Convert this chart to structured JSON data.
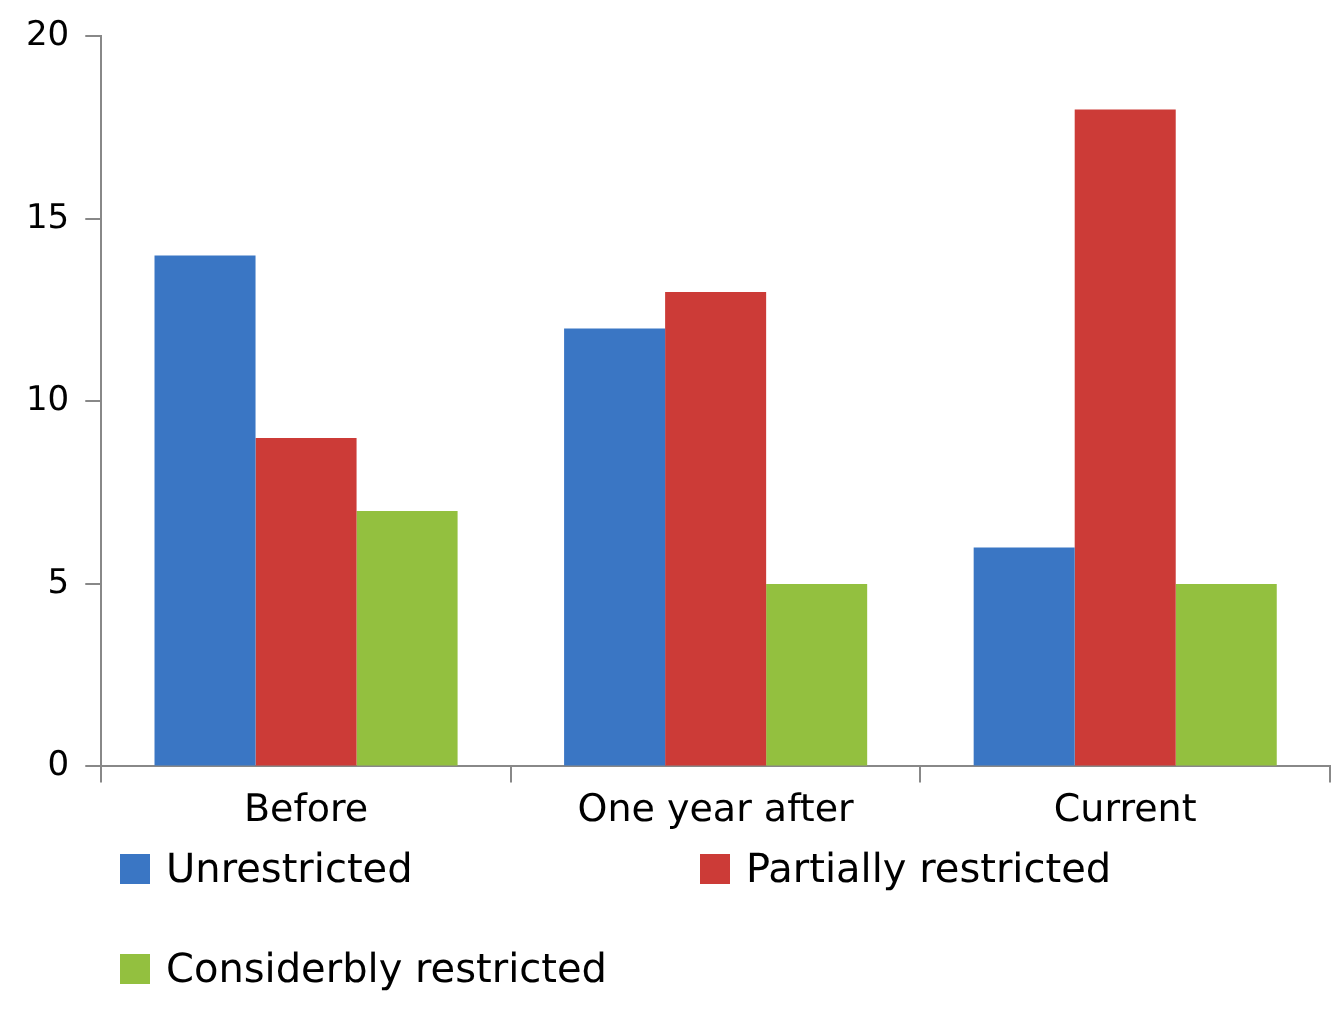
{
  "chart_data": {
    "type": "bar",
    "categories": [
      "Before",
      "One year after",
      "Current"
    ],
    "series": [
      {
        "name": "Unrestricted",
        "color": "#3a76c4",
        "values": [
          14,
          12,
          6
        ]
      },
      {
        "name": "Partially restricted",
        "color": "#cc3b37",
        "values": [
          9,
          13,
          18
        ]
      },
      {
        "name": "Considerbly restricted",
        "color": "#93c03f",
        "values": [
          7,
          5,
          5
        ]
      }
    ],
    "ylim": [
      0,
      20
    ],
    "yticks": [
      0,
      5,
      10,
      15,
      20
    ],
    "grid": false,
    "legend": "bottom"
  }
}
